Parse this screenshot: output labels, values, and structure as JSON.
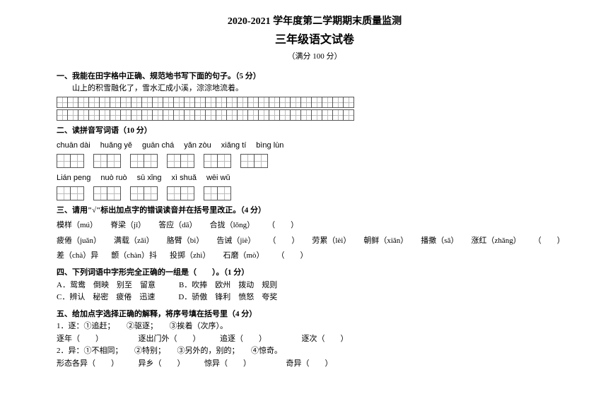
{
  "header": {
    "main_title": "2020-2021 学年度第二学期期末质量监测",
    "sub_title": "三年级语文试卷",
    "score": "（满分 100 分）"
  },
  "q1": {
    "title": "一、我能在田字格中正确、规范地书写下面的句子。（5 分）",
    "sentence": "山上的积雪融化了，雪水汇成小溪，淙淙地流着。",
    "grid_cols": 28,
    "grid_rows": 2
  },
  "q2": {
    "title": "二、读拼音写词语（10 分）",
    "row1_pinyin": [
      "chuān dài",
      "huǎng yě",
      "guān chá",
      "yǎn zòu",
      "xiǎng tí",
      "bìng lùn"
    ],
    "row2_pinyin": [
      "Lián peng",
      "nuò ruò",
      "sū xǐng",
      "xì shuǎ",
      "wēi wǔ"
    ],
    "cells_per_word": 2
  },
  "q3": {
    "title": "三、请用\"√\"标出加点字的错误读音并在括号里改正。（4 分）",
    "rows": [
      [
        "模样（mú）",
        "脊梁（jǐ）",
        "答应（dā）",
        "合拢（lǒng）",
        "（　　）"
      ],
      [
        "疲倦（juǎn）",
        "满载（zǎi）",
        "胳臂（bì）",
        "告诫（jiè）",
        "（　　）",
        "劳累（lèi）",
        "朝鲜（xiǎn）",
        "播撒（sǎ）",
        "涨红（zhǎng）",
        "（　　）"
      ],
      [
        "差（chà）异",
        "颤（chàn）抖",
        "投掷（zhì）",
        "石磨（mò）",
        "（　　）"
      ]
    ]
  },
  "q4": {
    "title": "四、下列词语中字形完全正确的一组是（　　）。（1 分）",
    "options": [
      "A．鸳鸯　倒映　别至　留意　　　B．吹捧　欧州　拨动　规则",
      "C．辨认　秘密　疲倦　迅速　　　D．骄傲　锋利　愤怒　夸奖"
    ]
  },
  "q5": {
    "title": "五、给加点字选择正确的解释，将序号填在括号里（4 分）",
    "items": [
      "1．逐：①追赶；　　②驱逐；　　③挨着（次序）。",
      "逐年（　　）　　　　　逐出门外（　　）　　　追逐（　　）　　　　　逐次（　　）",
      "2．异：①不相同；　　②特别；　　③另外的，别的；　　④惊奇。",
      "形态各异（　　）　　　异乡（　　）　　　惊异（　　）　　　　　奇异（　　）"
    ]
  }
}
